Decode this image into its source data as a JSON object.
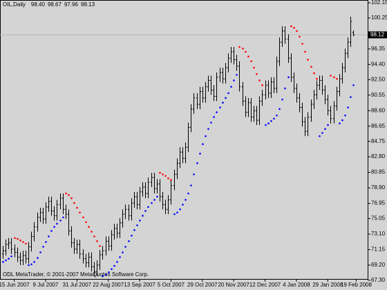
{
  "chart_data": {
    "type": "ohlc",
    "symbol": "OIL,Daily",
    "header_labels": [
      "98.40",
      "98.67",
      "97.96",
      "98.13"
    ],
    "footer": "ODL MetaTrader, © 2001-2007 MetaQuotes Software Corp.",
    "bar_color": "#000000",
    "sar_up_color": "#0000ff",
    "sar_down_color": "#ff0000",
    "price_marker": 98.12,
    "xlim": [
      -1,
      128
    ],
    "ylim": [
      67.2,
      102.5
    ],
    "xticks": [
      {
        "value": 4,
        "label": "15 Jun 2007"
      },
      {
        "value": 15,
        "label": "9 Jul 2007"
      },
      {
        "value": 26,
        "label": "31 Jul 2007"
      },
      {
        "value": 37,
        "label": "22 Aug 2007"
      },
      {
        "value": 48,
        "label": "13 Sep 2007"
      },
      {
        "value": 59,
        "label": "5 Oct 2007"
      },
      {
        "value": 70,
        "label": "29 Oct 2007"
      },
      {
        "value": 81,
        "label": "20 Nov 2007"
      },
      {
        "value": 92,
        "label": "12 Dec 2007"
      },
      {
        "value": 103,
        "label": "4 Jan 2008"
      },
      {
        "value": 114,
        "label": "29 Jan 2008"
      },
      {
        "value": 124,
        "label": "19 Feb 2008"
      }
    ],
    "yticks": [
      102.15,
      100.25,
      96.35,
      {
        "value": 94.4,
        "label": "94.40"
      },
      {
        "value": 92.5,
        "label": "92.50"
      },
      90.55,
      {
        "value": 88.6,
        "label": "88.60"
      },
      86.65,
      84.75,
      {
        "value": 82.8,
        "label": "82.80"
      },
      80.85,
      {
        "value": 78.9,
        "label": "78.90"
      },
      76.95,
      75.05,
      {
        "value": 73.1,
        "label": "73.10"
      },
      71.15,
      {
        "value": 69.2,
        "label": "69.20"
      },
      {
        "value": 67.3,
        "label": "67.30"
      }
    ],
    "ohlc": [
      [
        70.6,
        71.6,
        70.0,
        71.0
      ],
      [
        71.0,
        72.4,
        70.4,
        71.8
      ],
      [
        71.8,
        72.6,
        71.2,
        72.0
      ],
      [
        72.0,
        72.6,
        70.6,
        71.2
      ],
      [
        71.2,
        71.8,
        70.2,
        70.8
      ],
      [
        70.8,
        71.4,
        69.6,
        70.2
      ],
      [
        70.2,
        70.8,
        69.2,
        69.8
      ],
      [
        69.8,
        71.0,
        69.2,
        70.4
      ],
      [
        70.4,
        71.0,
        69.4,
        70.0
      ],
      [
        70.0,
        72.1,
        69.4,
        71.5
      ],
      [
        71.5,
        73.4,
        70.9,
        72.8
      ],
      [
        72.8,
        74.6,
        72.2,
        74.0
      ],
      [
        74.0,
        75.8,
        73.4,
        75.2
      ],
      [
        75.2,
        76.4,
        74.6,
        75.8
      ],
      [
        75.8,
        76.4,
        74.4,
        75.0
      ],
      [
        75.0,
        77.1,
        74.4,
        76.5
      ],
      [
        76.5,
        77.8,
        75.9,
        77.2
      ],
      [
        77.2,
        77.8,
        75.4,
        76.0
      ],
      [
        76.0,
        76.6,
        74.8,
        75.4
      ],
      [
        75.4,
        77.4,
        74.8,
        76.8
      ],
      [
        76.8,
        78.2,
        76.2,
        77.6
      ],
      [
        77.6,
        78.2,
        75.6,
        76.2
      ],
      [
        76.2,
        76.8,
        75.0,
        75.6
      ],
      [
        75.6,
        76.2,
        72.9,
        73.5
      ],
      [
        73.5,
        74.1,
        71.4,
        72.0
      ],
      [
        72.0,
        72.6,
        70.6,
        71.2
      ],
      [
        71.2,
        72.4,
        70.6,
        71.8
      ],
      [
        71.8,
        72.4,
        70.0,
        70.6
      ],
      [
        70.6,
        71.2,
        69.4,
        70.0
      ],
      [
        70.0,
        70.6,
        68.9,
        69.5
      ],
      [
        69.5,
        70.8,
        68.9,
        70.2
      ],
      [
        70.2,
        70.8,
        68.4,
        69.0
      ],
      [
        69.0,
        69.6,
        67.8,
        68.4
      ],
      [
        68.4,
        69.8,
        67.8,
        69.2
      ],
      [
        69.2,
        71.1,
        68.6,
        70.5
      ],
      [
        70.5,
        71.6,
        69.9,
        71.0
      ],
      [
        71.0,
        72.8,
        70.4,
        72.2
      ],
      [
        72.2,
        72.8,
        71.0,
        71.6
      ],
      [
        71.6,
        73.6,
        71.0,
        73.0
      ],
      [
        73.0,
        74.4,
        72.4,
        73.8
      ],
      [
        73.8,
        74.4,
        72.6,
        73.2
      ],
      [
        73.2,
        75.1,
        72.6,
        74.5
      ],
      [
        74.5,
        76.2,
        73.9,
        75.6
      ],
      [
        75.6,
        76.8,
        75.0,
        76.2
      ],
      [
        76.2,
        76.8,
        74.8,
        75.4
      ],
      [
        75.4,
        77.6,
        74.8,
        77.0
      ],
      [
        77.0,
        78.4,
        76.4,
        77.8
      ],
      [
        77.8,
        78.4,
        76.2,
        76.8
      ],
      [
        76.8,
        79.0,
        76.2,
        78.4
      ],
      [
        78.4,
        79.6,
        77.8,
        79.0
      ],
      [
        79.0,
        79.6,
        77.6,
        78.2
      ],
      [
        78.2,
        80.2,
        77.6,
        79.6
      ],
      [
        79.6,
        80.8,
        79.0,
        80.2
      ],
      [
        80.2,
        80.8,
        78.2,
        78.8
      ],
      [
        78.8,
        80.0,
        78.2,
        79.4
      ],
      [
        79.4,
        80.0,
        77.2,
        77.8
      ],
      [
        77.8,
        78.4,
        76.2,
        76.8
      ],
      [
        76.8,
        77.4,
        75.6,
        76.2
      ],
      [
        76.2,
        78.0,
        75.6,
        77.4
      ],
      [
        77.4,
        79.8,
        76.8,
        79.2
      ],
      [
        79.2,
        81.2,
        78.6,
        80.6
      ],
      [
        80.6,
        82.6,
        80.0,
        82.0
      ],
      [
        82.0,
        84.0,
        81.4,
        83.4
      ],
      [
        83.4,
        84.0,
        82.0,
        82.6
      ],
      [
        82.6,
        84.6,
        82.0,
        84.0
      ],
      [
        84.0,
        87.1,
        83.4,
        86.5
      ],
      [
        86.5,
        89.4,
        85.9,
        88.8
      ],
      [
        88.8,
        90.8,
        88.2,
        90.2
      ],
      [
        90.2,
        90.8,
        88.8,
        89.4
      ],
      [
        89.4,
        91.6,
        88.8,
        91.0
      ],
      [
        91.0,
        91.6,
        89.6,
        90.2
      ],
      [
        90.2,
        92.2,
        89.6,
        91.6
      ],
      [
        91.6,
        93.0,
        91.0,
        92.4
      ],
      [
        92.4,
        93.0,
        90.6,
        91.2
      ],
      [
        91.2,
        91.8,
        89.8,
        90.4
      ],
      [
        90.4,
        93.4,
        89.8,
        92.8
      ],
      [
        92.8,
        94.0,
        92.2,
        93.4
      ],
      [
        93.4,
        94.0,
        92.0,
        92.6
      ],
      [
        92.6,
        94.6,
        92.0,
        94.0
      ],
      [
        94.0,
        95.8,
        93.4,
        95.2
      ],
      [
        95.2,
        96.6,
        94.6,
        96.0
      ],
      [
        96.0,
        96.6,
        94.4,
        95.0
      ],
      [
        95.0,
        95.6,
        93.6,
        94.2
      ],
      [
        94.2,
        94.8,
        91.0,
        91.6
      ],
      [
        91.6,
        92.2,
        89.2,
        89.8
      ],
      [
        89.8,
        90.4,
        87.8,
        88.4
      ],
      [
        88.4,
        90.2,
        87.8,
        89.6
      ],
      [
        89.6,
        90.2,
        87.2,
        87.8
      ],
      [
        87.8,
        89.2,
        87.2,
        88.6
      ],
      [
        88.6,
        89.2,
        86.8,
        87.4
      ],
      [
        87.4,
        90.4,
        86.8,
        89.8
      ],
      [
        89.8,
        91.2,
        89.2,
        90.6
      ],
      [
        90.6,
        92.4,
        90.0,
        91.8
      ],
      [
        91.8,
        92.4,
        90.2,
        90.8
      ],
      [
        90.8,
        92.8,
        90.2,
        92.2
      ],
      [
        92.2,
        92.8,
        90.8,
        91.4
      ],
      [
        91.4,
        95.4,
        90.8,
        94.8
      ],
      [
        94.8,
        97.8,
        94.2,
        97.2
      ],
      [
        97.2,
        99.2,
        96.6,
        98.6
      ],
      [
        98.6,
        99.2,
        97.0,
        97.6
      ],
      [
        97.6,
        98.2,
        94.6,
        95.2
      ],
      [
        95.2,
        95.8,
        92.2,
        92.8
      ],
      [
        92.8,
        93.4,
        90.8,
        91.4
      ],
      [
        91.4,
        92.0,
        89.6,
        90.2
      ],
      [
        90.2,
        90.8,
        88.4,
        89.0
      ],
      [
        89.0,
        89.6,
        86.6,
        87.2
      ],
      [
        87.2,
        87.8,
        85.4,
        86.0
      ],
      [
        86.0,
        88.4,
        85.4,
        87.8
      ],
      [
        87.8,
        90.0,
        87.2,
        89.4
      ],
      [
        89.4,
        91.2,
        88.8,
        90.6
      ],
      [
        90.6,
        92.4,
        90.0,
        91.8
      ],
      [
        91.8,
        93.0,
        91.2,
        92.4
      ],
      [
        92.4,
        93.0,
        90.6,
        91.2
      ],
      [
        91.2,
        91.8,
        89.4,
        90.0
      ],
      [
        90.0,
        90.6,
        88.0,
        88.6
      ],
      [
        88.6,
        89.2,
        87.0,
        87.6
      ],
      [
        87.6,
        89.8,
        87.0,
        89.2
      ],
      [
        89.2,
        91.6,
        88.6,
        91.0
      ],
      [
        91.0,
        93.2,
        90.4,
        92.6
      ],
      [
        92.6,
        94.6,
        92.0,
        94.0
      ],
      [
        94.0,
        96.4,
        93.4,
        95.8
      ],
      [
        95.8,
        97.8,
        95.2,
        97.2
      ],
      [
        97.2,
        100.4,
        96.6,
        99.8
      ],
      [
        98.4,
        98.67,
        97.96,
        98.13
      ]
    ],
    "sar": [
      69.6,
      69.8,
      70.0,
      70.3,
      72.6,
      72.5,
      72.3,
      72.1,
      71.9,
      69.2,
      69.3,
      69.6,
      70.1,
      70.8,
      71.5,
      72.1,
      72.8,
      73.5,
      74.0,
      74.4,
      74.8,
      75.2,
      78.2,
      78.0,
      77.6,
      77.0,
      76.4,
      75.8,
      75.2,
      74.6,
      74.0,
      73.4,
      72.8,
      72.2,
      71.6,
      67.8,
      68.0,
      68.3,
      68.7,
      69.1,
      69.6,
      70.2,
      70.8,
      71.5,
      72.2,
      72.9,
      73.6,
      74.2,
      74.8,
      75.4,
      76.0,
      76.5,
      77.0,
      77.4,
      77.8,
      80.8,
      80.6,
      80.4,
      80.1,
      79.9,
      75.6,
      75.8,
      76.2,
      76.8,
      77.4,
      78.2,
      79.2,
      80.6,
      82.0,
      83.2,
      84.4,
      85.4,
      86.3,
      87.1,
      87.8,
      88.4,
      89.0,
      89.6,
      90.2,
      90.8,
      91.6,
      92.4,
      93.1,
      96.6,
      96.4,
      96.0,
      95.4,
      94.8,
      94.0,
      93.2,
      92.4,
      91.8,
      86.8,
      87.0,
      87.3,
      87.6,
      88.0,
      88.8,
      90.0,
      91.4,
      92.8,
      99.2,
      99.0,
      98.6,
      97.9,
      97.0,
      96.0,
      95.0,
      94.1,
      93.3,
      92.6,
      85.4,
      85.8,
      86.3,
      86.8,
      93.0,
      92.8,
      92.6,
      87.0,
      87.4,
      88.0,
      89.0,
      90.3,
      91.8
    ]
  }
}
